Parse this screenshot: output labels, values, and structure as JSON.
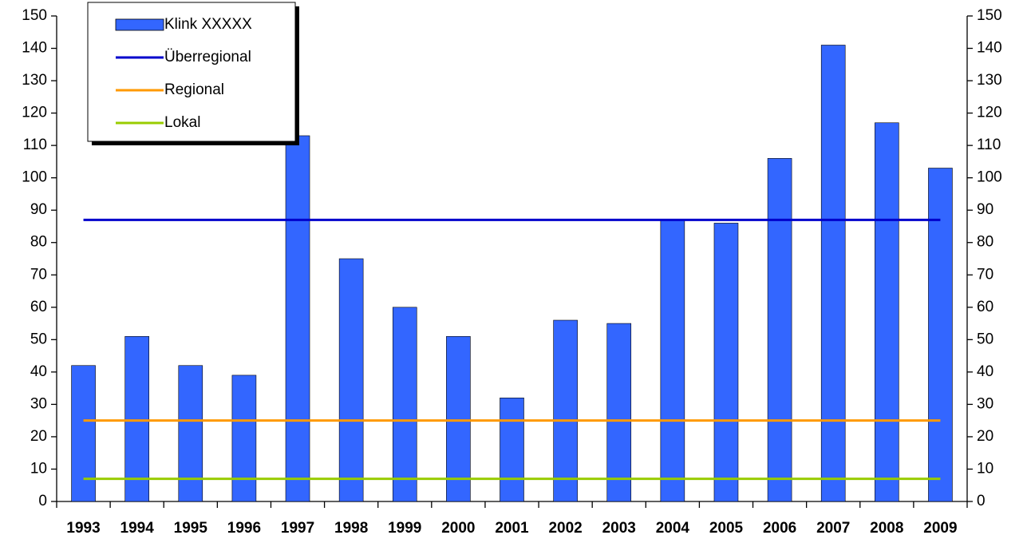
{
  "chart_data": {
    "type": "bar",
    "categories": [
      "1993",
      "1994",
      "1995",
      "1996",
      "1997",
      "1998",
      "1999",
      "2000",
      "2001",
      "2002",
      "2003",
      "2004",
      "2005",
      "2006",
      "2007",
      "2008",
      "2009"
    ],
    "series": [
      {
        "name": "Klink XXXXX",
        "type": "bar",
        "color": "#3366ff",
        "values": [
          42,
          51,
          42,
          39,
          113,
          75,
          60,
          51,
          32,
          56,
          55,
          87,
          86,
          106,
          141,
          117,
          103
        ]
      },
      {
        "name": "Überregional",
        "type": "line",
        "color": "#0000cc",
        "values": [
          87,
          87,
          87,
          87,
          87,
          87,
          87,
          87,
          87,
          87,
          87,
          87,
          87,
          87,
          87,
          87,
          87
        ]
      },
      {
        "name": "Regional",
        "type": "line",
        "color": "#ff9900",
        "values": [
          25,
          25,
          25,
          25,
          25,
          25,
          25,
          25,
          25,
          25,
          25,
          25,
          25,
          25,
          25,
          25,
          25
        ]
      },
      {
        "name": "Lokal",
        "type": "line",
        "color": "#99cc00",
        "values": [
          7,
          7,
          7,
          7,
          7,
          7,
          7,
          7,
          7,
          7,
          7,
          7,
          7,
          7,
          7,
          7,
          7
        ]
      }
    ],
    "ylim": [
      0,
      150
    ],
    "yticks": [
      0,
      10,
      20,
      30,
      40,
      50,
      60,
      70,
      80,
      90,
      100,
      110,
      120,
      130,
      140,
      150
    ],
    "y2lim": [
      0,
      150
    ],
    "y2ticks": [
      0,
      10,
      20,
      30,
      40,
      50,
      60,
      70,
      80,
      90,
      100,
      110,
      120,
      130,
      140,
      150
    ],
    "legend": "upper-left"
  }
}
